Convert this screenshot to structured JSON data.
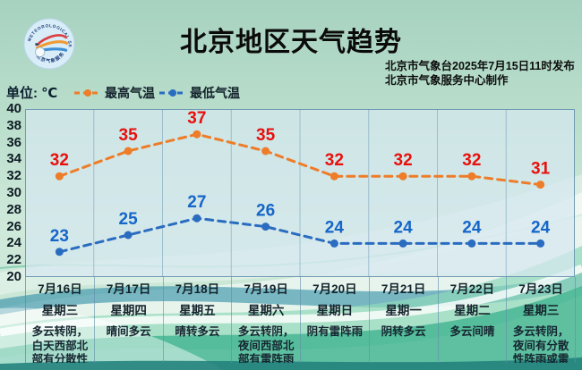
{
  "header": {
    "title": "北京地区天气趋势",
    "issued_line1": "北京市气象台2025年7月15日11时发布",
    "issued_line2": "北京市气象服务中心制作",
    "logo_text_top": "METEOROLOGICAL SERVICE",
    "logo_text_bottom": "北京气象服务"
  },
  "unit_label": "单位: ℃",
  "legend": {
    "high": "最高气温",
    "low": "最低气温"
  },
  "colors": {
    "high": "#ee7c28",
    "low": "#2a6cc0",
    "high_label": "#e8100d",
    "low_label": "#1566c9",
    "grid": "rgba(106,150,176,0.5)",
    "grid_strong": "rgba(96,140,168,0.85)"
  },
  "days": [
    {
      "date": "7月16日",
      "weekday": "星期三",
      "weather": "多云转阴，白天西部北部有分散性雷阵雨"
    },
    {
      "date": "7月17日",
      "weekday": "星期四",
      "weather": "晴间多云"
    },
    {
      "date": "7月18日",
      "weekday": "星期五",
      "weather": "晴转多云"
    },
    {
      "date": "7月19日",
      "weekday": "星期六",
      "weather": "多云转阴，夜间西部北部有雷阵雨"
    },
    {
      "date": "7月20日",
      "weekday": "星期日",
      "weather": "阴有雷阵雨"
    },
    {
      "date": "7月21日",
      "weekday": "星期一",
      "weather": "阴转多云"
    },
    {
      "date": "7月22日",
      "weekday": "星期二",
      "weather": "多云间晴"
    },
    {
      "date": "7月23日",
      "weekday": "星期三",
      "weather": "多云转阴，夜间有分散性阵雨或雷阵雨"
    }
  ],
  "chart_data": {
    "type": "line",
    "title": "北京地区天气趋势",
    "categories": [
      "7月16日",
      "7月17日",
      "7月18日",
      "7月19日",
      "7月20日",
      "7月21日",
      "7月22日",
      "7月23日"
    ],
    "series": [
      {
        "name": "最高气温",
        "color": "#ee7c28",
        "label_color": "#e8100d",
        "values": [
          32,
          35,
          37,
          35,
          32,
          32,
          32,
          31
        ]
      },
      {
        "name": "最低气温",
        "color": "#2a6cc0",
        "label_color": "#1566c9",
        "values": [
          23,
          25,
          27,
          26,
          24,
          24,
          24,
          24
        ]
      }
    ],
    "ylabel": "℃",
    "ylim": [
      20,
      40
    ],
    "yticks": [
      20,
      22,
      24,
      26,
      28,
      30,
      32,
      34,
      36,
      38,
      40
    ],
    "grid": "vertical-only",
    "legend_position": "top-left",
    "line_style": "dashed"
  }
}
